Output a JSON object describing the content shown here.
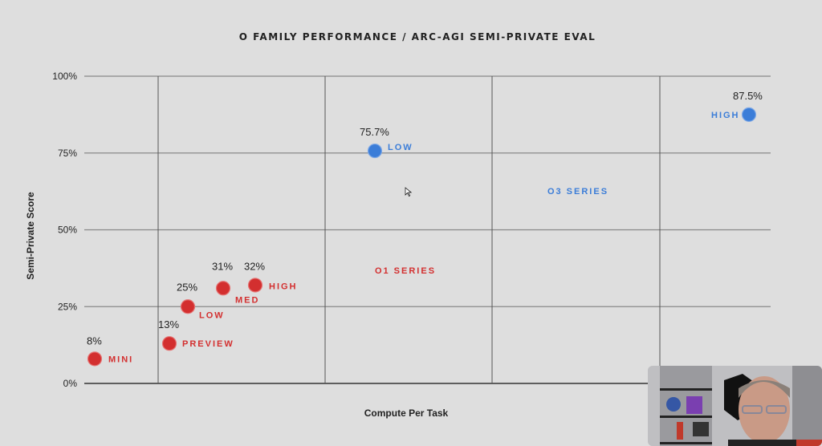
{
  "chart_data": {
    "type": "scatter",
    "title": "O FAMILY PERFORMANCE / ARC-AGI SEMI-PRIVATE EVAL",
    "xlabel": "Compute Per Task",
    "ylabel": "Semi-Private Score",
    "ylim": [
      0,
      100
    ],
    "yticks": [
      "0%",
      "25%",
      "50%",
      "75%",
      "100%"
    ],
    "grid": true,
    "x_scale": "unlabeled",
    "series": [
      {
        "name": "O1 SERIES",
        "color": "#d32f2f",
        "points": [
          {
            "label": "MINI",
            "value_label": "8%",
            "y": 8
          },
          {
            "label": "PREVIEW",
            "value_label": "13%",
            "y": 13
          },
          {
            "label": "LOW",
            "value_label": "25%",
            "y": 25
          },
          {
            "label": "MED",
            "value_label": "31%",
            "y": 31
          },
          {
            "label": "HIGH",
            "value_label": "32%",
            "y": 32
          }
        ]
      },
      {
        "name": "O3 SERIES",
        "color": "#3b7dd8",
        "points": [
          {
            "label": "LOW",
            "value_label": "75.7%",
            "y": 75.7
          },
          {
            "label": "HIGH",
            "value_label": "87.5%",
            "y": 87.5
          }
        ]
      }
    ]
  },
  "overlay": {
    "webcam": "presenter-webcam"
  }
}
